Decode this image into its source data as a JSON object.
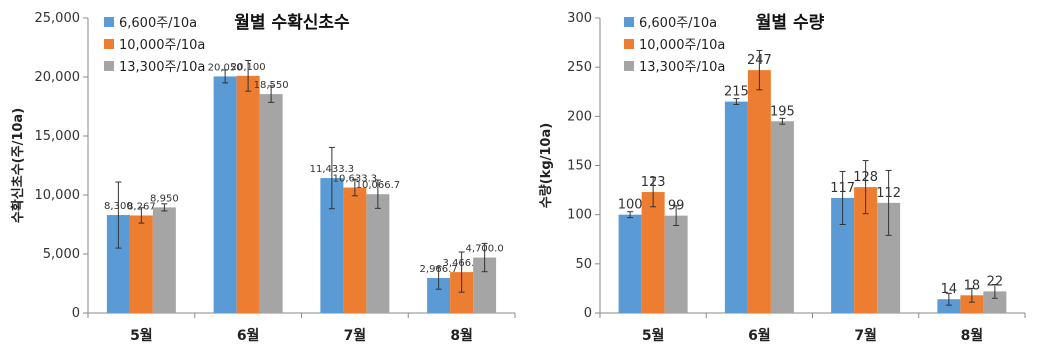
{
  "chart_data": [
    {
      "type": "bar",
      "title": "월별 수확신초수",
      "ylabel": "수확신초수(주/10a)",
      "xlabel": "",
      "categories": [
        "5월",
        "6월",
        "7월",
        "8월"
      ],
      "ylim": [
        0,
        25000
      ],
      "yticks": [
        "0",
        "5,000",
        "10,000",
        "15,000",
        "20,000",
        "25,000"
      ],
      "legend_position": "top-left",
      "grid": false,
      "series": [
        {
          "name": "6,600주/10a",
          "color": "#5B9BD5",
          "values": [
            8300,
            20050,
            11433.3,
            2966.7
          ],
          "errors": [
            2800,
            550,
            2600,
            950
          ],
          "labels": [
            "8,300",
            "20,050",
            "11,433.3",
            "2,966.7"
          ]
        },
        {
          "name": "10,000주/10a",
          "color": "#ED7D31",
          "values": [
            8267,
            20100,
            10633.3,
            3466.7
          ],
          "errors": [
            650,
            1300,
            700,
            1700
          ],
          "labels": [
            "8,267",
            "20,100",
            "10,633.3",
            "3,466.7"
          ]
        },
        {
          "name": "13,300주/10a",
          "color": "#A5A5A5",
          "values": [
            8950,
            18550,
            10066.7,
            4700.0
          ],
          "errors": [
            300,
            700,
            1200,
            1200
          ],
          "labels": [
            "8,950",
            "18,550",
            "10,066.7",
            "4,700.0"
          ]
        }
      ]
    },
    {
      "type": "bar",
      "title": "월별 수량",
      "ylabel": "수량(kg/10a)",
      "xlabel": "",
      "categories": [
        "5월",
        "6월",
        "7월",
        "8월"
      ],
      "ylim": [
        0,
        300
      ],
      "yticks": [
        "0",
        "50",
        "100",
        "150",
        "200",
        "250",
        "300"
      ],
      "legend_position": "top-left",
      "grid": false,
      "series": [
        {
          "name": "6,600주/10a",
          "color": "#5B9BD5",
          "values": [
            100,
            215,
            117,
            14
          ],
          "errors": [
            3,
            3,
            27,
            6
          ],
          "labels": [
            "100",
            "215",
            "117",
            "14"
          ]
        },
        {
          "name": "10,000주/10a",
          "color": "#ED7D31",
          "values": [
            123,
            247,
            128,
            18
          ],
          "errors": [
            15,
            20,
            27,
            7
          ],
          "labels": [
            "123",
            "247",
            "128",
            "18"
          ]
        },
        {
          "name": "13,300주/10a",
          "color": "#A5A5A5",
          "values": [
            99,
            195,
            112,
            22
          ],
          "errors": [
            10,
            3,
            33,
            7
          ],
          "labels": [
            "99",
            "195",
            "112",
            "22"
          ]
        }
      ]
    }
  ]
}
